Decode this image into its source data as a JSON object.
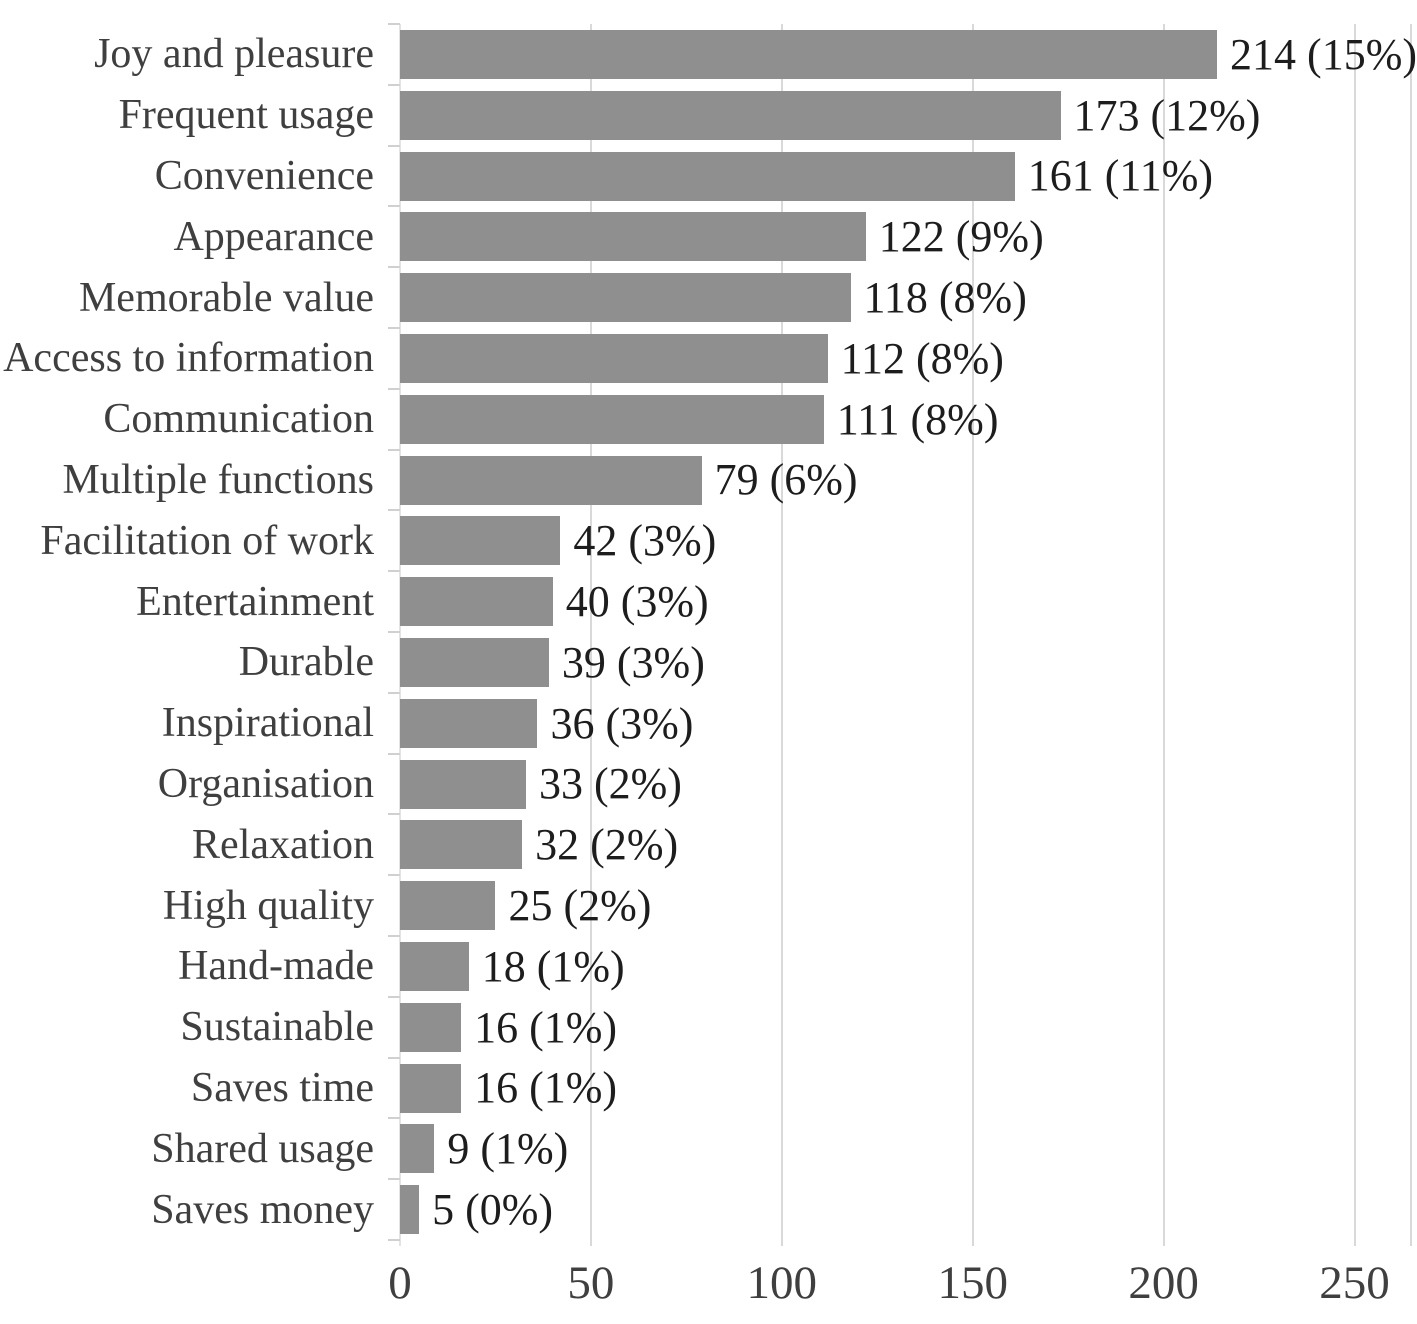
{
  "figure": {
    "background": "#ffffff"
  },
  "chart_data": {
    "type": "bar",
    "orientation": "horizontal",
    "title": "",
    "xlabel": "",
    "ylabel": "",
    "categories": [
      "Joy and pleasure",
      "Frequent usage",
      "Convenience",
      "Appearance",
      "Memorable value",
      "Access to information",
      "Communication",
      "Multiple functions",
      "Facilitation of work",
      "Entertainment",
      "Durable",
      "Inspirational",
      "Organisation",
      "Relaxation",
      "High quality",
      "Hand-made",
      "Sustainable",
      "Saves time",
      "Shared usage",
      "Saves money"
    ],
    "values": [
      214,
      173,
      161,
      122,
      118,
      112,
      111,
      79,
      42,
      40,
      39,
      36,
      33,
      32,
      25,
      18,
      16,
      16,
      9,
      5
    ],
    "value_labels": [
      "214 (15%)",
      "173 (12%)",
      "161 (11%)",
      "122 (9%)",
      "118 (8%)",
      "112 (8%)",
      "111 (8%)",
      "79 (6%)",
      "42 (3%)",
      "40 (3%)",
      "39 (3%)",
      "36 (3%)",
      "33 (2%)",
      "32 (2%)",
      "25 (2%)",
      "18 (1%)",
      "16 (1%)",
      "16 (1%)",
      "9 (1%)",
      "5 (0%)"
    ],
    "x_ticks": [
      0,
      50,
      100,
      150,
      200,
      250
    ],
    "xlim": [
      0,
      265
    ],
    "grid": true,
    "legend": false,
    "colors": {
      "bar": "#8f8f8f",
      "gridline": "#d9d9d9",
      "axis_tick": "#d0d0d0",
      "axis_line": "#e3e3e3",
      "plot_border": "#d9d9d9",
      "category_label": "#3f3f3f",
      "value_label": "#1d1d1d",
      "axis_label": "#3f3f3f"
    }
  }
}
